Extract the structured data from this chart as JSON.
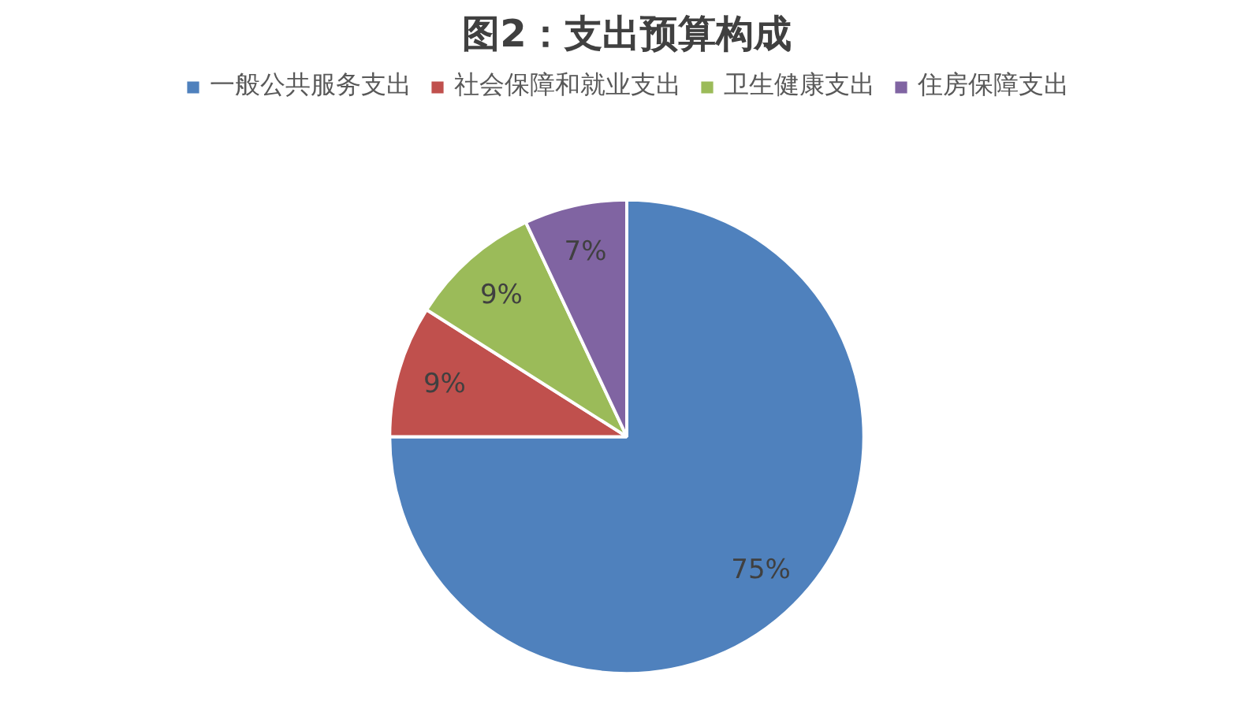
{
  "chart_data": {
    "type": "pie",
    "title": "图2：支出预算构成",
    "categories": [
      "一般公共服务支出",
      "社会保障和就业支出",
      "卫生健康支出",
      "住房保障支出"
    ],
    "values": [
      75,
      9,
      9,
      7
    ],
    "colors": [
      "#4f81bd",
      "#c0504d",
      "#9bbb59",
      "#8064a2"
    ],
    "value_labels": [
      "75%",
      "9%",
      "9%",
      "7%"
    ],
    "legend": "top"
  }
}
